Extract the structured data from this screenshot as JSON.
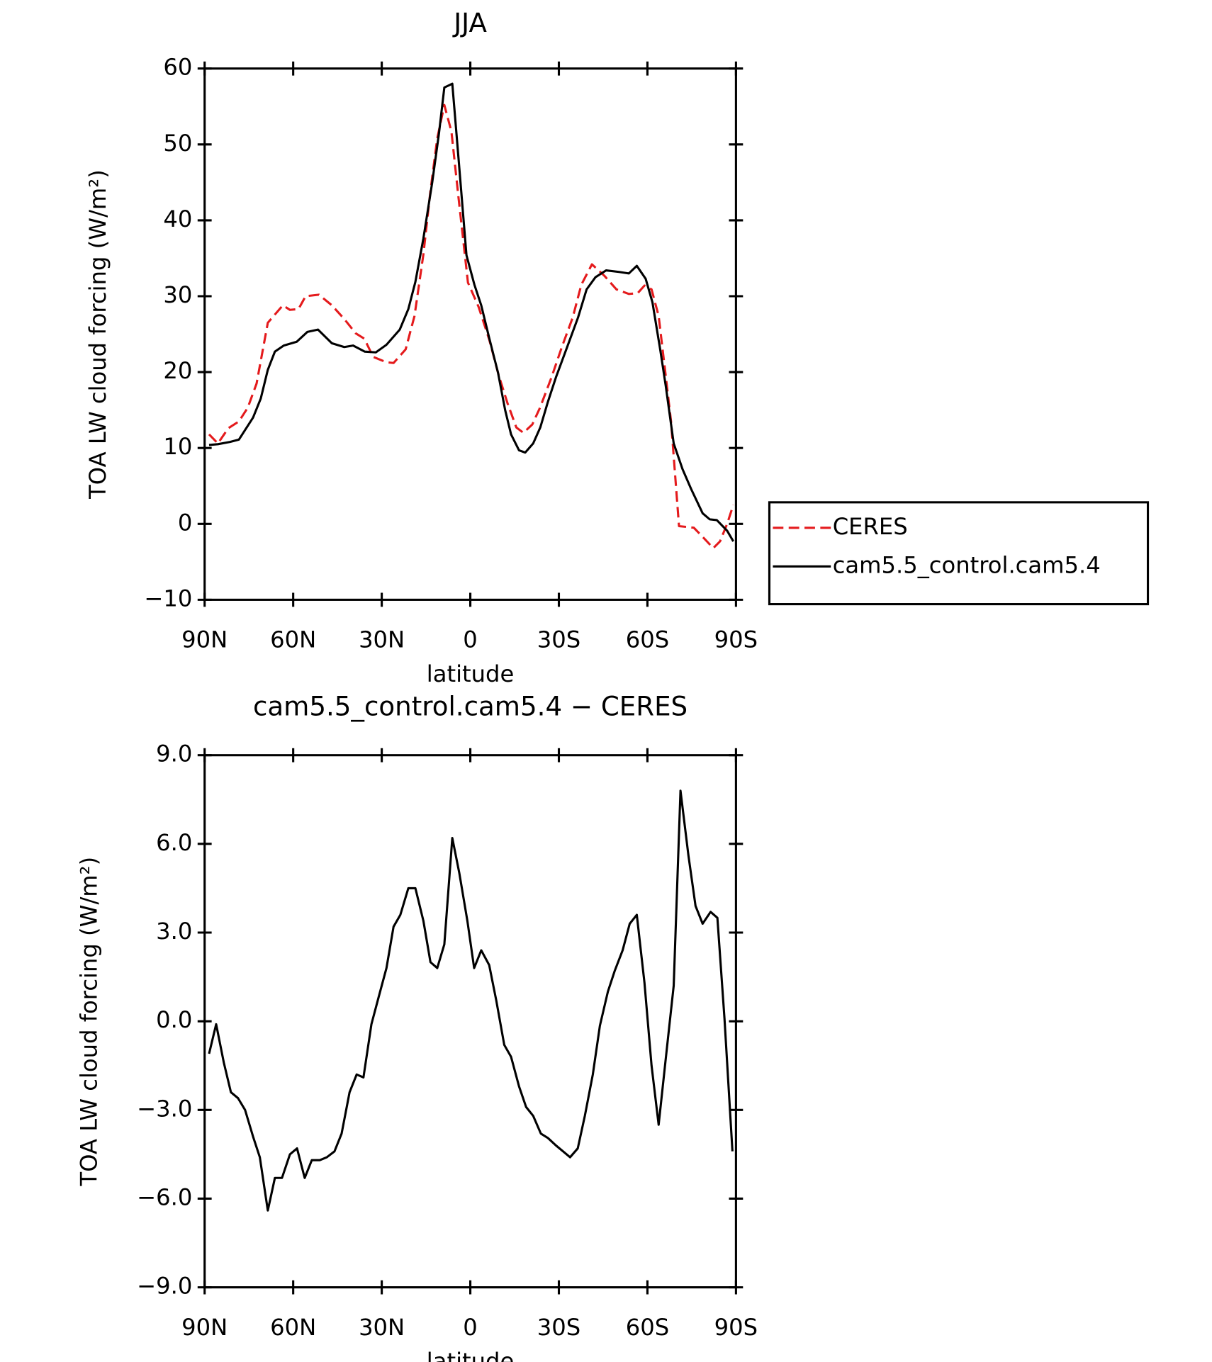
{
  "chart_data": [
    {
      "type": "line",
      "title": "JJA",
      "x_label": "latitude",
      "y_label": "TOA LW cloud forcing (W/m²)",
      "xlim": [
        90,
        -90
      ],
      "xticks": [
        {
          "value": 90,
          "label": "90N"
        },
        {
          "value": 60,
          "label": "60N"
        },
        {
          "value": 30,
          "label": "30N"
        },
        0,
        {
          "value": -30,
          "label": "30S"
        },
        {
          "value": -60,
          "label": "60S"
        },
        {
          "value": -90,
          "label": "90S"
        }
      ],
      "ylim": [
        -10,
        60
      ],
      "yticks": [
        {
          "value": -10,
          "label": "−10"
        },
        0,
        10,
        20,
        30,
        40,
        50,
        60
      ],
      "legend": "right",
      "series": [
        {
          "name": "CERES",
          "color": "#e41a1c",
          "dash": "dashed",
          "x": [
            88.5,
            85.5,
            82,
            78.4,
            75.4,
            72.4,
            68.6,
            63.5,
            61.1,
            58.2,
            55.8,
            51.3,
            46.9,
            42.7,
            38.8,
            35.9,
            32.9,
            28.4,
            26,
            21.9,
            18.9,
            15.9,
            13.5,
            11.2,
            8.8,
            6.4,
            4,
            0.8,
            -2.8,
            -6.4,
            -9.6,
            -12.6,
            -15.6,
            -18,
            -21,
            -23.6,
            -27.5,
            -31.1,
            -34.7,
            -37.6,
            -41.2,
            -45.4,
            -49.5,
            -53.7,
            -56.7,
            -59,
            -61.4,
            -63.8,
            -65.9,
            -68,
            -70.7,
            -75.7,
            -78.7,
            -82.3,
            -84.6,
            -87,
            -89.1
          ],
          "values": [
            11.8,
            10.6,
            12.6,
            13.5,
            15.3,
            18.5,
            26.5,
            28.8,
            28.2,
            28.3,
            30,
            30.2,
            28.8,
            27,
            25.1,
            24.4,
            22,
            21.3,
            21.2,
            23,
            27.4,
            35.5,
            43.9,
            50.8,
            55.2,
            51.7,
            43,
            31.8,
            28.6,
            24.3,
            19.6,
            15.9,
            12.7,
            12,
            13.1,
            15.3,
            19.3,
            23.4,
            27.2,
            31.5,
            34.2,
            32.7,
            30.9,
            30.3,
            30.4,
            31.4,
            30.9,
            27.4,
            20.5,
            13.5,
            -0.3,
            -0.5,
            -1.7,
            -3.2,
            -2.3,
            0,
            2.5
          ]
        },
        {
          "name": "cam5.5_control.cam5.4",
          "color": "#000000",
          "dash": "solid",
          "x": [
            88.5,
            85.5,
            81.4,
            78.4,
            73.6,
            71,
            68.6,
            66.2,
            63.2,
            58.8,
            55.2,
            51.6,
            46.9,
            42.7,
            39.7,
            35.8,
            32,
            28.4,
            23.9,
            21,
            18.6,
            15.9,
            12.9,
            10.6,
            8.8,
            6.1,
            4,
            1.3,
            -1.4,
            -3.7,
            -6.4,
            -9.4,
            -11.8,
            -13.8,
            -16.5,
            -18.6,
            -21.3,
            -23.7,
            -26.3,
            -29,
            -32.9,
            -36.5,
            -39.4,
            -42.4,
            -46,
            -50.4,
            -53.7,
            -56.4,
            -59.4,
            -61.7,
            -64.4,
            -66.2,
            -68.9,
            -71.9,
            -74.8,
            -78.7,
            -81.1,
            -83.5,
            -87,
            -89.1
          ],
          "values": [
            10.4,
            10.5,
            10.8,
            11.1,
            14,
            16.5,
            20.3,
            22.7,
            23.5,
            24,
            25.3,
            25.6,
            23.8,
            23.3,
            23.5,
            22.7,
            22.6,
            23.6,
            25.6,
            28.3,
            31.9,
            37.6,
            45,
            51.5,
            57.5,
            58,
            48.2,
            35.4,
            31.5,
            28.8,
            24.5,
            19.9,
            15,
            11.8,
            9.7,
            9.4,
            10.6,
            12.7,
            16.1,
            19.3,
            23.4,
            27.2,
            30.9,
            32.5,
            33.4,
            33.2,
            33,
            34,
            32.3,
            29.2,
            22.8,
            18.2,
            10.6,
            7.2,
            4.6,
            1.4,
            0.6,
            0.5,
            -0.9,
            -2.3
          ]
        }
      ]
    },
    {
      "type": "line",
      "title": "cam5.5_control.cam5.4 − CERES",
      "x_label": "latitude",
      "y_label": "TOA LW cloud forcing (W/m²)",
      "xlim": [
        90,
        -90
      ],
      "xticks": [
        {
          "value": 90,
          "label": "90N"
        },
        {
          "value": 60,
          "label": "60N"
        },
        {
          "value": 30,
          "label": "30N"
        },
        0,
        {
          "value": -30,
          "label": "30S"
        },
        {
          "value": -60,
          "label": "60S"
        },
        {
          "value": -90,
          "label": "90S"
        }
      ],
      "ylim": [
        -9,
        9
      ],
      "yticks": [
        {
          "value": -9,
          "label": "−9.0"
        },
        {
          "value": -6,
          "label": "−6.0"
        },
        {
          "value": -3,
          "label": "−3.0"
        },
        {
          "value": 0,
          "label": "0.0"
        },
        {
          "value": 3,
          "label": "3.0"
        },
        {
          "value": 6,
          "label": "6.0"
        },
        {
          "value": 9,
          "label": "9.0"
        }
      ],
      "series": [
        {
          "color": "#000000",
          "dash": "solid",
          "x": [
            88.5,
            86.1,
            83.5,
            81.1,
            78.7,
            76.3,
            73.6,
            71.3,
            68.6,
            66.2,
            63.8,
            61.1,
            58.7,
            56.1,
            53.7,
            51,
            48.6,
            46,
            43.6,
            40.9,
            38.5,
            36.2,
            33.5,
            31.1,
            28.4,
            26,
            23.7,
            21,
            18.6,
            15.9,
            13.5,
            11.2,
            8.8,
            6.1,
            3.7,
            1,
            -1.3,
            -3.7,
            -6.4,
            -8.8,
            -11.5,
            -13.8,
            -16.5,
            -18.9,
            -21.3,
            -23.9,
            -26.3,
            -29,
            -31.4,
            -33.8,
            -36.4,
            -38.8,
            -41.5,
            -43.9,
            -46.6,
            -48.9,
            -51.6,
            -54,
            -56.4,
            -59,
            -61.4,
            -63.8,
            -66.5,
            -68.9,
            -71.2,
            -73.9,
            -76.3,
            -78.7,
            -81.4,
            -83.7,
            -86.1,
            -88.8
          ],
          "values": [
            -1.1,
            -0.1,
            -1.4,
            -2.4,
            -2.6,
            -3.0,
            -3.9,
            -4.6,
            -6.4,
            -5.3,
            -5.3,
            -4.5,
            -4.3,
            -5.3,
            -4.7,
            -4.7,
            -4.6,
            -4.4,
            -3.8,
            -2.4,
            -1.8,
            -1.9,
            -0.1,
            0.8,
            1.8,
            3.2,
            3.6,
            4.5,
            4.5,
            3.4,
            2.0,
            1.8,
            2.6,
            6.2,
            5.0,
            3.4,
            1.8,
            2.4,
            1.9,
            0.7,
            -0.8,
            -1.2,
            -2.2,
            -2.9,
            -3.2,
            -3.8,
            -3.95,
            -4.2,
            -4.4,
            -4.6,
            -4.3,
            -3.2,
            -1.8,
            -0.15,
            1.0,
            1.7,
            2.4,
            3.3,
            3.6,
            1.3,
            -1.5,
            -3.5,
            -1.0,
            1.2,
            7.8,
            5.6,
            3.9,
            3.3,
            3.7,
            3.5,
            0.1,
            -4.4
          ]
        }
      ]
    }
  ]
}
